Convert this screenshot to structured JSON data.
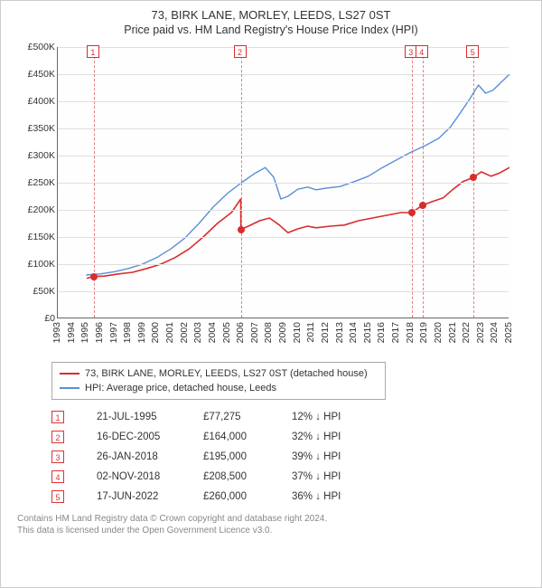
{
  "title1": "73, BIRK LANE, MORLEY, LEEDS, LS27 0ST",
  "title2": "Price paid vs. HM Land Registry's House Price Index (HPI)",
  "chart": {
    "type": "line",
    "background_color": "#fefefe",
    "grid_color": "#e0e0e0",
    "axis_color": "#666666",
    "label_fontsize": 10.5,
    "x_years": [
      1993,
      1994,
      1995,
      1996,
      1997,
      1998,
      1999,
      2000,
      2001,
      2002,
      2003,
      2004,
      2005,
      2006,
      2007,
      2008,
      2009,
      2010,
      2011,
      2012,
      2013,
      2014,
      2015,
      2016,
      2017,
      2018,
      2019,
      2020,
      2021,
      2022,
      2023,
      2024,
      2025
    ],
    "ylim": [
      0,
      500000
    ],
    "ytick_step": 50000,
    "ytick_labels": [
      "£0",
      "£50K",
      "£100K",
      "£150K",
      "£200K",
      "£250K",
      "£300K",
      "£350K",
      "£400K",
      "£450K",
      "£500K"
    ],
    "series": [
      {
        "name": "73, BIRK LANE, MORLEY, LEEDS, LS27 0ST (detached house)",
        "color": "#d92c2c",
        "line_width": 1.6,
        "points_year_value": [
          [
            1995.05,
            74000
          ],
          [
            1995.55,
            77275
          ],
          [
            1996.3,
            78000
          ],
          [
            1997.3,
            82000
          ],
          [
            1998.3,
            85000
          ],
          [
            1999.3,
            92000
          ],
          [
            2000.3,
            100000
          ],
          [
            2001.3,
            112000
          ],
          [
            2002.3,
            128000
          ],
          [
            2003.3,
            150000
          ],
          [
            2004.3,
            175000
          ],
          [
            2005.3,
            195000
          ],
          [
            2005.96,
            220000
          ],
          [
            2005.97,
            164000
          ],
          [
            2006.5,
            170000
          ],
          [
            2007.3,
            180000
          ],
          [
            2008.0,
            185000
          ],
          [
            2008.7,
            172000
          ],
          [
            2009.3,
            158000
          ],
          [
            2010.0,
            165000
          ],
          [
            2010.7,
            170000
          ],
          [
            2011.3,
            167000
          ],
          [
            2012.3,
            170000
          ],
          [
            2013.3,
            172000
          ],
          [
            2014.3,
            180000
          ],
          [
            2015.3,
            185000
          ],
          [
            2016.3,
            190000
          ],
          [
            2017.3,
            195000
          ],
          [
            2018.07,
            195000
          ],
          [
            2018.84,
            208500
          ],
          [
            2019.5,
            215000
          ],
          [
            2020.3,
            222000
          ],
          [
            2021.0,
            238000
          ],
          [
            2021.7,
            252000
          ],
          [
            2022.46,
            260000
          ],
          [
            2023.0,
            270000
          ],
          [
            2023.7,
            262000
          ],
          [
            2024.3,
            268000
          ],
          [
            2025.0,
            278000
          ]
        ]
      },
      {
        "name": "HPI: Average price, detached house, Leeds",
        "color": "#5b8fd6",
        "line_width": 1.4,
        "points_year_value": [
          [
            1995.0,
            80000
          ],
          [
            1996.0,
            82000
          ],
          [
            1997.0,
            86000
          ],
          [
            1998.0,
            92000
          ],
          [
            1999.0,
            100000
          ],
          [
            2000.0,
            112000
          ],
          [
            2001.0,
            128000
          ],
          [
            2002.0,
            148000
          ],
          [
            2003.0,
            175000
          ],
          [
            2004.0,
            205000
          ],
          [
            2005.0,
            230000
          ],
          [
            2006.0,
            250000
          ],
          [
            2007.0,
            268000
          ],
          [
            2007.7,
            278000
          ],
          [
            2008.3,
            260000
          ],
          [
            2008.8,
            220000
          ],
          [
            2009.3,
            225000
          ],
          [
            2010.0,
            238000
          ],
          [
            2010.7,
            242000
          ],
          [
            2011.3,
            237000
          ],
          [
            2012.0,
            240000
          ],
          [
            2013.0,
            243000
          ],
          [
            2014.0,
            252000
          ],
          [
            2015.0,
            262000
          ],
          [
            2016.0,
            278000
          ],
          [
            2017.0,
            292000
          ],
          [
            2018.0,
            306000
          ],
          [
            2019.0,
            318000
          ],
          [
            2020.0,
            332000
          ],
          [
            2020.8,
            352000
          ],
          [
            2021.5,
            378000
          ],
          [
            2022.2,
            405000
          ],
          [
            2022.8,
            430000
          ],
          [
            2023.3,
            415000
          ],
          [
            2023.8,
            420000
          ],
          [
            2024.3,
            432000
          ],
          [
            2025.0,
            450000
          ]
        ]
      }
    ],
    "sale_markers": [
      {
        "n": "1",
        "year": 1995.55,
        "value": 77275,
        "color": "#d92c2c"
      },
      {
        "n": "2",
        "year": 2005.96,
        "value": 164000,
        "color": "#d92c2c"
      },
      {
        "n": "3",
        "year": 2018.07,
        "value": 195000,
        "color": "#d92c2c"
      },
      {
        "n": "4",
        "year": 2018.84,
        "value": 208500,
        "color": "#d92c2c"
      },
      {
        "n": "5",
        "year": 2022.46,
        "value": 260000,
        "color": "#d92c2c"
      }
    ],
    "vline_color": "#d92c2c",
    "callout_border": "#d92c2c",
    "callout_text_color": "#d92c2c"
  },
  "legend": {
    "rows": [
      {
        "color": "#d92c2c",
        "label": "73, BIRK LANE, MORLEY, LEEDS, LS27 0ST (detached house)"
      },
      {
        "color": "#5b8fd6",
        "label": "HPI: Average price, detached house, Leeds"
      }
    ]
  },
  "sales": [
    {
      "n": "1",
      "date": "21-JUL-1995",
      "price": "£77,275",
      "pct": "12% ↓ HPI"
    },
    {
      "n": "2",
      "date": "16-DEC-2005",
      "price": "£164,000",
      "pct": "32% ↓ HPI"
    },
    {
      "n": "3",
      "date": "26-JAN-2018",
      "price": "£195,000",
      "pct": "39% ↓ HPI"
    },
    {
      "n": "4",
      "date": "02-NOV-2018",
      "price": "£208,500",
      "pct": "37% ↓ HPI"
    },
    {
      "n": "5",
      "date": "17-JUN-2022",
      "price": "£260,000",
      "pct": "36% ↓ HPI"
    }
  ],
  "footer": {
    "l1": "Contains HM Land Registry data © Crown copyright and database right 2024.",
    "l2": "This data is licensed under the Open Government Licence v3.0."
  }
}
